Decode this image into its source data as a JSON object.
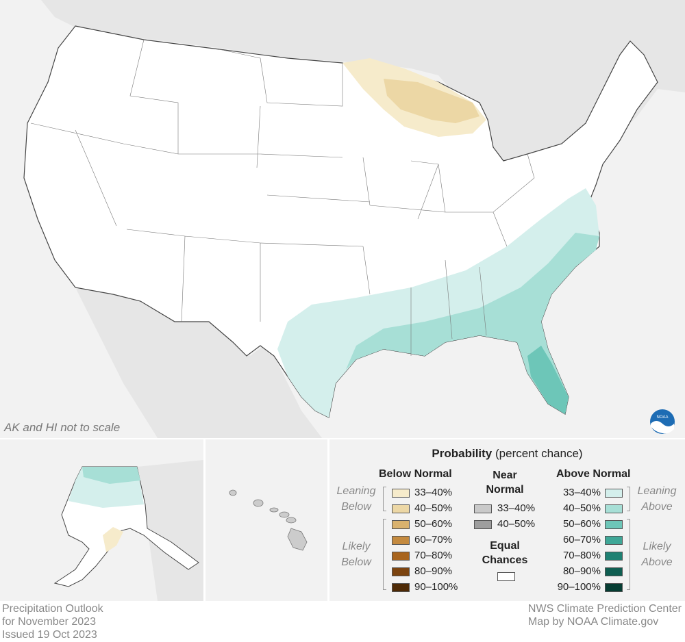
{
  "map": {
    "scale_note": "AK and HI not to scale",
    "logo_text": "NOAA"
  },
  "legend": {
    "title_bold": "Probability",
    "title_rest": "(percent chance)",
    "below_header": "Below Normal",
    "near_header_1": "Near",
    "near_header_2": "Normal",
    "above_header": "Above Normal",
    "leaning_below_1": "Leaning",
    "leaning_below_2": "Below",
    "likely_below_1": "Likely",
    "likely_below_2": "Below",
    "leaning_above_1": "Leaning",
    "leaning_above_2": "Above",
    "likely_above_1": "Likely",
    "likely_above_2": "Above",
    "equal_1": "Equal",
    "equal_2": "Chances",
    "below": [
      {
        "label": "33–40%",
        "color": "#f6ebcb"
      },
      {
        "label": "40–50%",
        "color": "#ecd7a5"
      },
      {
        "label": "50–60%",
        "color": "#d9b26e"
      },
      {
        "label": "60–70%",
        "color": "#c48a3f"
      },
      {
        "label": "70–80%",
        "color": "#a8641d"
      },
      {
        "label": "80–90%",
        "color": "#7c4410"
      },
      {
        "label": "90–100%",
        "color": "#4e2a06"
      }
    ],
    "near": [
      {
        "label": "33–40%",
        "color": "#c9c9c9"
      },
      {
        "label": "40–50%",
        "color": "#9e9e9e"
      }
    ],
    "above": [
      {
        "label": "33–40%",
        "color": "#d4efec"
      },
      {
        "label": "40–50%",
        "color": "#a7dfd6"
      },
      {
        "label": "50–60%",
        "color": "#6dc6b8"
      },
      {
        "label": "60–70%",
        "color": "#3fa797"
      },
      {
        "label": "70–80%",
        "color": "#1f8173"
      },
      {
        "label": "80–90%",
        "color": "#0f5e51"
      },
      {
        "label": "90–100%",
        "color": "#063d33"
      }
    ],
    "equal_color": "#ffffff"
  },
  "footer": {
    "left_1": "Precipitation Outlook",
    "left_2": "for November 2023",
    "left_3": "Issued 19 Oct 2023",
    "right_1": "NWS Climate Prediction Center",
    "right_2": "Map by NOAA Climate.gov"
  }
}
